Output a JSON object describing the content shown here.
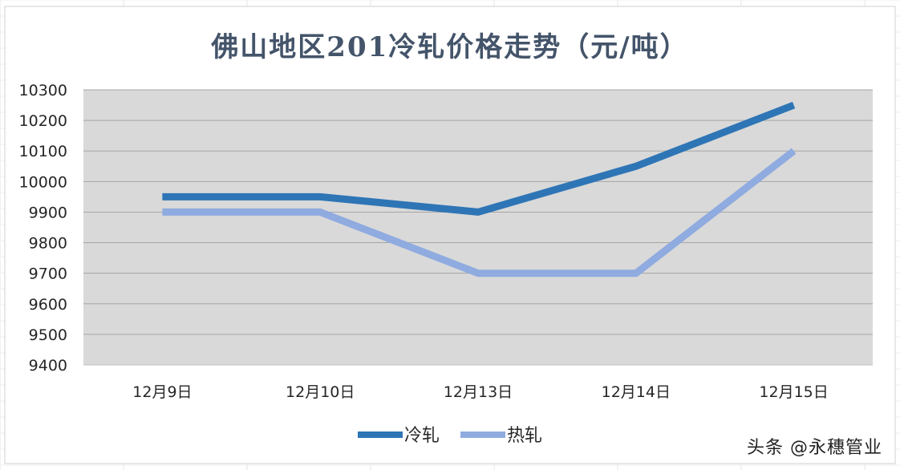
{
  "chart_data": {
    "type": "line",
    "title": "佛山地区201冷轧价格走势（元/吨）",
    "categories": [
      "12月9日",
      "12月10日",
      "12月13日",
      "12月14日",
      "12月15日"
    ],
    "yticks": [
      9400,
      9500,
      9600,
      9700,
      9800,
      9900,
      10000,
      10100,
      10200,
      10300
    ],
    "ylim": [
      9400,
      10300
    ],
    "grid": true,
    "legend": "bottom",
    "series": [
      {
        "name": "冷轧",
        "values": [
          9950,
          9950,
          9900,
          10050,
          10250
        ],
        "color": "#2e75b6"
      },
      {
        "name": "热轧",
        "values": [
          9900,
          9900,
          9700,
          9700,
          10100
        ],
        "color": "#8fabe0"
      }
    ]
  },
  "watermark": "头条 @永穗管业",
  "colors": {
    "plot_background": "#d9d9d9",
    "gridline": "#a6a6a6",
    "title": "#44546a",
    "text": "#262626"
  }
}
